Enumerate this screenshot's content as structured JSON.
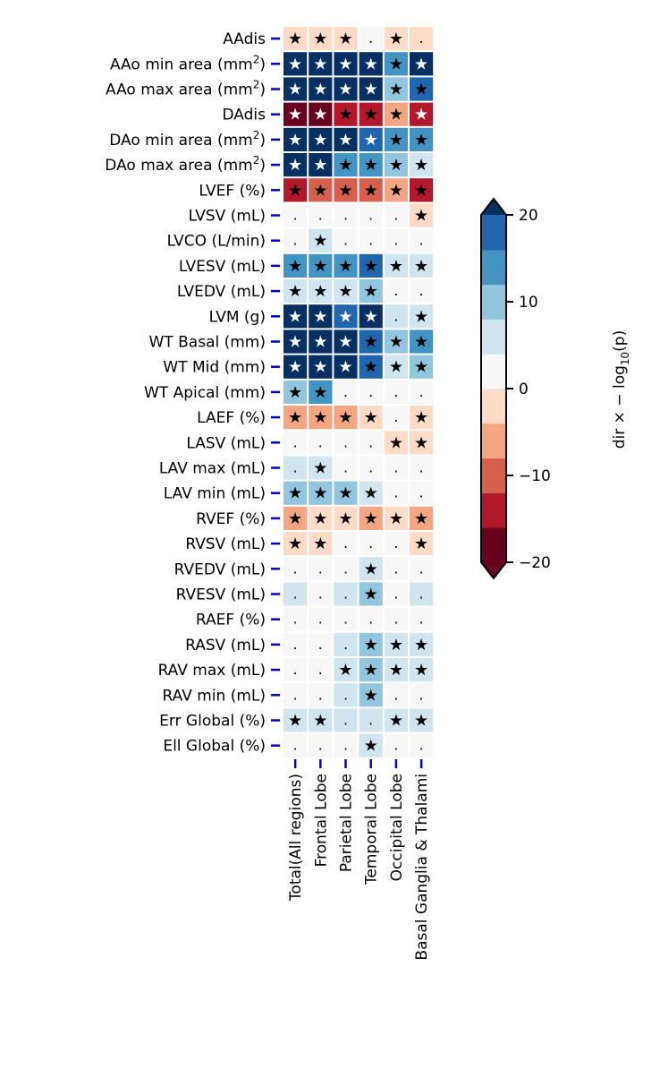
{
  "chart_data": {
    "type": "heatmap",
    "title": "",
    "rows": [
      "AAdis",
      "AAo min area (mm²)",
      "AAo max area (mm²)",
      "DAdis",
      "DAo min area (mm²)",
      "DAo max area (mm²)",
      "LVEF (%)",
      "LVSV (mL)",
      "LVCO (L/min)",
      "LVESV (mL)",
      "LVEDV (mL)",
      "LVM (g)",
      "WT Basal (mm)",
      "WT Mid (mm)",
      "WT Apical (mm)",
      "LAEF (%)",
      "LASV (mL)",
      "LAV max (mL)",
      "LAV min (mL)",
      "RVEF (%)",
      "RVSV (mL)",
      "RVEDV (mL)",
      "RVESV (mL)",
      "RAEF (%)",
      "RASV (mL)",
      "RAV max (mL)",
      "RAV min (mL)",
      "Err Global (%)",
      "Ell Global (%)"
    ],
    "columns": [
      "Total(All regions)",
      "Frontal Lobe",
      "Parietal Lobe",
      "Temporal Lobe",
      "Occipital Lobe",
      "Basal Ganglia & Thalami"
    ],
    "values": [
      [
        -2,
        -2,
        -2,
        1,
        -2,
        -2
      ],
      [
        22,
        22,
        22,
        22,
        14,
        22
      ],
      [
        22,
        22,
        22,
        22,
        10,
        17
      ],
      [
        -22,
        -22,
        -14,
        -14,
        -6,
        -15.5
      ],
      [
        22,
        22,
        22,
        19,
        14,
        14
      ],
      [
        22,
        22,
        14,
        14,
        10,
        6
      ],
      [
        -14,
        -10,
        -10,
        -10,
        -6,
        -14
      ],
      [
        1,
        1,
        1,
        1,
        1,
        -2
      ],
      [
        1,
        6,
        1,
        1,
        1,
        1
      ],
      [
        14,
        14,
        14,
        17,
        6,
        6
      ],
      [
        6,
        6,
        6,
        10,
        1,
        1
      ],
      [
        22,
        22,
        19,
        22,
        6,
        6
      ],
      [
        22,
        22,
        22,
        17,
        10,
        14
      ],
      [
        22,
        22,
        22,
        17,
        6,
        10
      ],
      [
        10,
        14,
        1,
        1,
        1,
        1
      ],
      [
        -6,
        -6,
        -6,
        -2,
        1,
        -2
      ],
      [
        1,
        1,
        1,
        1,
        -2,
        -2
      ],
      [
        6,
        6,
        1,
        1,
        1,
        1
      ],
      [
        10,
        10,
        10,
        6,
        1,
        1
      ],
      [
        -6,
        -2,
        -2,
        -6,
        -2,
        -6
      ],
      [
        -2,
        -2,
        1,
        1,
        1,
        -2
      ],
      [
        1,
        1,
        1,
        6,
        1,
        1
      ],
      [
        6,
        1,
        6,
        10,
        1,
        6
      ],
      [
        1,
        1,
        1,
        1,
        1,
        1
      ],
      [
        1,
        1,
        6,
        10,
        6,
        6
      ],
      [
        1,
        1,
        6,
        10,
        6,
        6
      ],
      [
        1,
        1,
        6,
        10,
        1,
        1
      ],
      [
        6,
        6,
        6,
        6,
        6,
        6
      ],
      [
        1,
        1,
        1,
        6,
        1,
        1
      ]
    ],
    "significant": [
      [
        1,
        1,
        1,
        0,
        1,
        0
      ],
      [
        1,
        1,
        1,
        1,
        1,
        1
      ],
      [
        1,
        1,
        1,
        1,
        1,
        1
      ],
      [
        1,
        1,
        1,
        1,
        1,
        1
      ],
      [
        1,
        1,
        1,
        1,
        1,
        1
      ],
      [
        1,
        1,
        1,
        1,
        1,
        1
      ],
      [
        1,
        1,
        1,
        1,
        1,
        1
      ],
      [
        0,
        0,
        0,
        0,
        0,
        1
      ],
      [
        0,
        1,
        0,
        0,
        0,
        0
      ],
      [
        1,
        1,
        1,
        1,
        1,
        1
      ],
      [
        1,
        1,
        1,
        1,
        0,
        0
      ],
      [
        1,
        1,
        1,
        1,
        0,
        1
      ],
      [
        1,
        1,
        1,
        1,
        1,
        1
      ],
      [
        1,
        1,
        1,
        1,
        1,
        1
      ],
      [
        1,
        1,
        0,
        0,
        0,
        0
      ],
      [
        1,
        1,
        1,
        1,
        0,
        1
      ],
      [
        0,
        0,
        0,
        0,
        1,
        1
      ],
      [
        0,
        1,
        0,
        0,
        0,
        0
      ],
      [
        1,
        1,
        1,
        1,
        0,
        0
      ],
      [
        1,
        1,
        1,
        1,
        1,
        1
      ],
      [
        1,
        1,
        0,
        0,
        0,
        1
      ],
      [
        0,
        0,
        0,
        1,
        0,
        0
      ],
      [
        0,
        0,
        0,
        1,
        0,
        0
      ],
      [
        0,
        0,
        0,
        0,
        0,
        0
      ],
      [
        0,
        0,
        0,
        1,
        1,
        1
      ],
      [
        0,
        0,
        1,
        1,
        1,
        1
      ],
      [
        0,
        0,
        0,
        1,
        0,
        0
      ],
      [
        1,
        1,
        0,
        0,
        1,
        1
      ],
      [
        0,
        0,
        0,
        1,
        0,
        0
      ]
    ],
    "sig_marker": "★",
    "nonsig_marker": ".",
    "colorbar": {
      "label_prefix": "dir × − log",
      "label_sub": "10",
      "label_suffix": "(p)",
      "range": [
        -20,
        20
      ],
      "ticks": [
        20,
        10,
        0,
        -10,
        -20
      ],
      "tick_labels": [
        "20",
        "10",
        "0",
        "−10",
        "−20"
      ],
      "extend": "both",
      "colors": [
        "#67001f",
        "#b2182b",
        "#d6604d",
        "#f4a582",
        "#fddbc7",
        "#f7f7f7",
        "#d1e5f0",
        "#92c5de",
        "#4393c3",
        "#2166ac",
        "#053061"
      ],
      "bounds": [
        -20,
        -16,
        -12,
        -8,
        -4,
        0,
        4,
        8,
        12,
        16,
        20
      ]
    },
    "tick_color": "#0000cc"
  }
}
